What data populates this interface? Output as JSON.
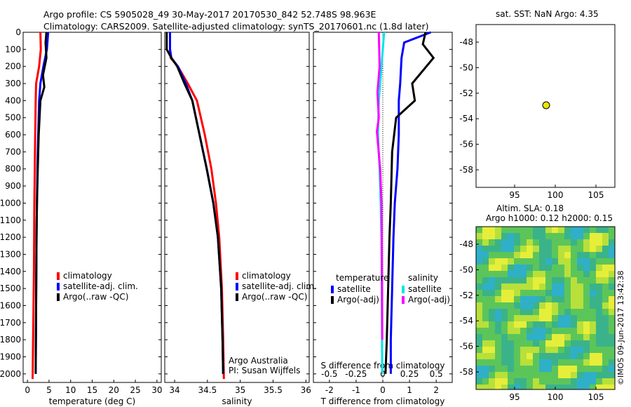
{
  "title_line1": "Argo profile: CS 5905028_49 30-May-2017 20170530_842 52.748S 98.963E",
  "title_line2": "Climatology: CARS2009. Satellite-adjusted climatology: synTS_20170601.nc (1.8d later)",
  "depth_axis": {
    "ticks": [
      "0",
      "100",
      "200",
      "300",
      "400",
      "500",
      "600",
      "700",
      "800",
      "900",
      "1000",
      "1100",
      "1200",
      "1300",
      "1400",
      "1500",
      "1600",
      "1700",
      "1800",
      "1900",
      "2000"
    ],
    "ylim": [
      0,
      2050
    ]
  },
  "legend_left": {
    "items": [
      "climatology",
      "satellite-adj. clim.",
      "Argo(..raw -QC)"
    ]
  },
  "legend_diff": {
    "temp_header": "temperature",
    "sal_header": "salinity",
    "temp_items": [
      "satellite",
      "Argo(-adj)"
    ],
    "sal_items": [
      "satellite",
      "Argo(-adj)"
    ]
  },
  "credits": {
    "line1": "Argo Australia",
    "line2": "PI: Susan Wijffels"
  },
  "map_top": {
    "title": "sat. SST: NaN Argo: 4.35",
    "xticks": [
      "95",
      "100",
      "105"
    ],
    "yticks": [
      "-48",
      "-50",
      "-52",
      "-54",
      "-56",
      "-58"
    ]
  },
  "map_bottom": {
    "title_line1": "Altim. SLA: 0.18",
    "title_line2": "Argo h1000: 0.12 h2000: 0.15",
    "xticks": [
      "95",
      "100",
      "105"
    ],
    "yticks": [
      "-48",
      "-50",
      "-52",
      "-54",
      "-56",
      "-58"
    ],
    "stamp": "©IMOS 09-Jun-2017 13:42:38"
  },
  "chart_data": [
    {
      "type": "line",
      "xlabel": "temperature (deg C)",
      "xlim": [
        -1,
        31
      ],
      "xticks": [
        "0",
        "5",
        "10",
        "15",
        "20",
        "25",
        "30"
      ],
      "series": [
        {
          "name": "climatology",
          "color": "#ff0000",
          "x": [
            3.0,
            3.1,
            2.7,
            2.0,
            1.9,
            1.8,
            1.7,
            1.6,
            1.55,
            1.5,
            1.4,
            1.3,
            1.2
          ],
          "depth": [
            0,
            100,
            200,
            300,
            400,
            600,
            800,
            1000,
            1200,
            1400,
            1600,
            1800,
            2030
          ]
        },
        {
          "name": "satellite-adj. clim.",
          "color": "#0000ff",
          "x": [
            4.8,
            4.5,
            3.7,
            3.0,
            2.7,
            2.5,
            2.3,
            2.2,
            2.1,
            2.05,
            2.0,
            1.95,
            1.9
          ],
          "depth": [
            0,
            100,
            200,
            300,
            400,
            600,
            800,
            1000,
            1200,
            1400,
            1600,
            1800,
            2000
          ]
        },
        {
          "name": "Argo(..raw -QC)",
          "color": "#000000",
          "x": [
            4.4,
            4.2,
            4.4,
            3.6,
            3.9,
            3.0,
            2.6,
            2.4,
            2.2,
            2.1,
            2.05,
            2.0,
            1.95,
            1.9
          ],
          "depth": [
            0,
            60,
            150,
            250,
            320,
            400,
            600,
            800,
            1000,
            1200,
            1400,
            1600,
            1800,
            2000
          ]
        }
      ]
    },
    {
      "type": "line",
      "xlabel": "salinity",
      "xlim": [
        33.85,
        36.05
      ],
      "xticks": [
        "34",
        "34.5",
        "35",
        "35.5",
        "36"
      ],
      "series": [
        {
          "name": "climatology",
          "color": "#ff0000",
          "x": [
            33.93,
            33.93,
            33.94,
            34.05,
            34.2,
            34.34,
            34.46,
            34.56,
            34.63,
            34.68,
            34.72,
            34.74,
            34.75
          ],
          "depth": [
            0,
            100,
            150,
            200,
            300,
            400,
            600,
            800,
            1000,
            1200,
            1500,
            1800,
            2030
          ]
        },
        {
          "name": "satellite-adj. clim.",
          "color": "#0000ff",
          "x": [
            33.93,
            33.93,
            33.95,
            34.05,
            34.17,
            34.27,
            34.38,
            34.49,
            34.59,
            34.66,
            34.71,
            34.73,
            34.74
          ],
          "depth": [
            0,
            100,
            150,
            200,
            300,
            400,
            600,
            800,
            1000,
            1200,
            1500,
            1800,
            2000
          ]
        },
        {
          "name": "Argo(..raw -QC)",
          "color": "#000000",
          "x": [
            33.88,
            33.88,
            33.95,
            34.04,
            34.15,
            34.27,
            34.38,
            34.49,
            34.59,
            34.66,
            34.71,
            34.73,
            34.74
          ],
          "depth": [
            0,
            100,
            150,
            200,
            300,
            400,
            600,
            800,
            1000,
            1200,
            1500,
            1800,
            2000
          ]
        }
      ]
    },
    {
      "type": "line",
      "xlabel": "T difference from climatology",
      "xlabel_top": "S difference from climatology",
      "xlim": [
        -2.6,
        2.6
      ],
      "xticks": [
        "-2",
        "-1",
        "0",
        "1",
        "2"
      ],
      "top_ticks": [
        "-0.5",
        "-0.25",
        "0",
        "0.25",
        "0.5"
      ],
      "series": [
        {
          "name": "temperature satellite",
          "color": "#0000ff",
          "x": [
            1.8,
            0.8,
            0.7,
            0.65,
            0.6,
            0.6,
            0.55,
            0.45,
            0.4,
            0.35,
            0.3,
            0.3
          ],
          "depth": [
            0,
            60,
            150,
            300,
            400,
            600,
            800,
            1000,
            1200,
            1500,
            1800,
            2000
          ]
        },
        {
          "name": "temperature Argo(-adj)",
          "color": "#000000",
          "x": [
            1.6,
            1.5,
            1.9,
            1.1,
            1.2,
            0.5,
            0.35,
            0.3,
            0.25,
            0.2,
            0.15,
            0.1
          ],
          "depth": [
            0,
            70,
            150,
            300,
            400,
            500,
            700,
            1000,
            1200,
            1500,
            1800,
            2000
          ]
        },
        {
          "name": "salinity satellite",
          "color": "#00e5e5",
          "x": [
            0.05,
            0.0,
            -0.05,
            -0.1,
            -0.15,
            -0.18,
            -0.12,
            -0.08,
            -0.05,
            -0.04,
            -0.03,
            -0.02
          ],
          "depth": [
            0,
            100,
            200,
            300,
            400,
            600,
            800,
            1000,
            1200,
            1500,
            1800,
            2000
          ]
        },
        {
          "name": "salinity Argo(-adj)",
          "color": "#ff00ff",
          "x": [
            -0.15,
            -0.12,
            -0.2,
            -0.15,
            -0.22,
            -0.1,
            -0.05,
            -0.04,
            -0.03,
            -0.02
          ],
          "depth": [
            0,
            200,
            350,
            500,
            580,
            800,
            1000,
            1200,
            1500,
            1800
          ]
        }
      ]
    }
  ]
}
